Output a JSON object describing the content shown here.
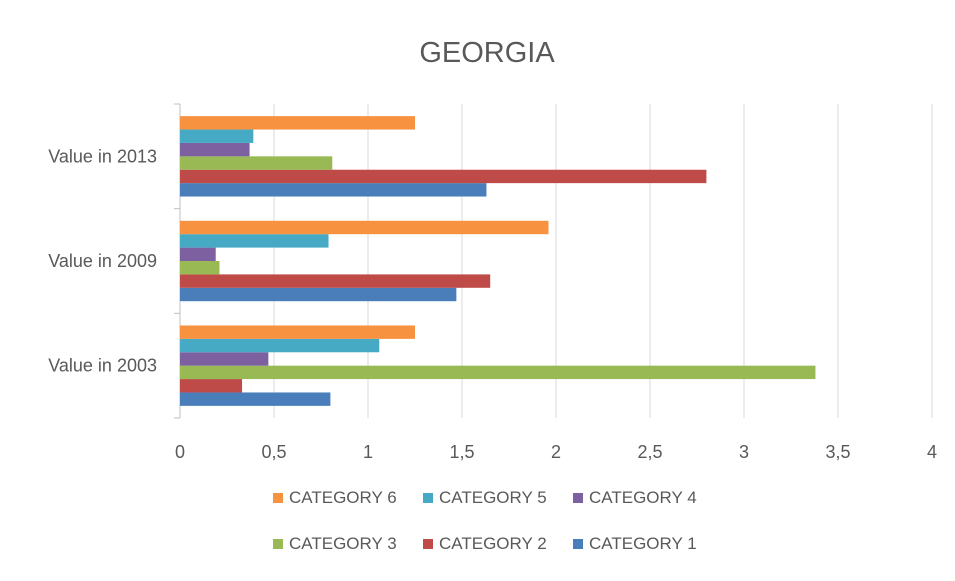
{
  "chart_data": {
    "type": "bar",
    "orientation": "horizontal",
    "title": "GEORGIA",
    "xlabel": "",
    "ylabel": "",
    "categories": [
      "Value in 2003",
      "Value in 2009",
      "Value in 2013"
    ],
    "xlim": [
      0,
      4
    ],
    "x_ticks": [
      "0",
      "0,5",
      "1",
      "1,5",
      "2",
      "2,5",
      "3",
      "3,5",
      "4"
    ],
    "grid": "vertical",
    "legend_position": "bottom",
    "series": [
      {
        "name": "CATEGORY 1",
        "color": "#4a7ebb",
        "values": [
          0.8,
          1.47,
          1.63
        ]
      },
      {
        "name": "CATEGORY 2",
        "color": "#be4b48",
        "values": [
          0.33,
          1.65,
          2.8
        ]
      },
      {
        "name": "CATEGORY 3",
        "color": "#98b954",
        "values": [
          3.38,
          0.21,
          0.81
        ]
      },
      {
        "name": "CATEGORY 4",
        "color": "#7d60a0",
        "values": [
          0.47,
          0.19,
          0.37
        ]
      },
      {
        "name": "CATEGORY 5",
        "color": "#46aac5",
        "values": [
          1.06,
          0.79,
          0.39
        ]
      },
      {
        "name": "CATEGORY 6",
        "color": "#f69240",
        "values": [
          1.25,
          1.96,
          1.25
        ]
      }
    ],
    "legend_order": [
      "CATEGORY 6",
      "CATEGORY 5",
      "CATEGORY 4",
      "CATEGORY 3",
      "CATEGORY 2",
      "CATEGORY 1"
    ]
  }
}
